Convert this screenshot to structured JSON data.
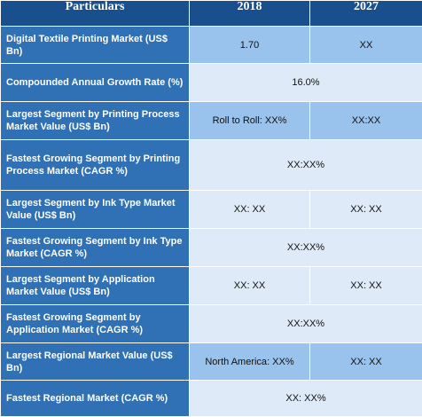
{
  "header": {
    "col0": "Particulars",
    "col1": "2018",
    "col2": "2027"
  },
  "rows": [
    {
      "label": "Digital Textile Printing Market (US$ Bn)",
      "v2018": "1.70",
      "v2027": "XX"
    },
    {
      "label": "Compounded Annual Growth Rate (%)",
      "merged": "16.0%"
    },
    {
      "label": "Largest Segment by Printing Process Market Value (US$ Bn)",
      "v2018": "Roll to Roll: XX%",
      "v2027": "XX:XX"
    },
    {
      "label": "Fastest Growing Segment by Printing Process Market (CAGR %)",
      "merged": "XX:XX%"
    },
    {
      "label": "Largest Segment by Ink Type Market Value (US$ Bn)",
      "v2018": "XX: XX",
      "v2027": "XX: XX"
    },
    {
      "label": "Fastest Growing Segment by Ink Type Market (CAGR %)",
      "merged": "XX:XX%"
    },
    {
      "label": "Largest Segment by Application Market Value (US$ Bn)",
      "v2018": "XX: XX",
      "v2027": "XX: XX"
    },
    {
      "label": "Fastest Growing Segment by Application Market (CAGR %)",
      "merged": "XX:XX%"
    },
    {
      "label": "Largest Regional Market Value (US$ Bn)",
      "v2018": "North America: XX%",
      "v2027": "XX: XX"
    },
    {
      "label": "Fastest Regional Market (CAGR %)",
      "merged": "XX: XX%"
    }
  ],
  "colors": {
    "header_bg": "#1a4f8e",
    "label_bg": "#3070b4",
    "value_dark": "#99c2ec",
    "value_light": "#deeaf7"
  }
}
